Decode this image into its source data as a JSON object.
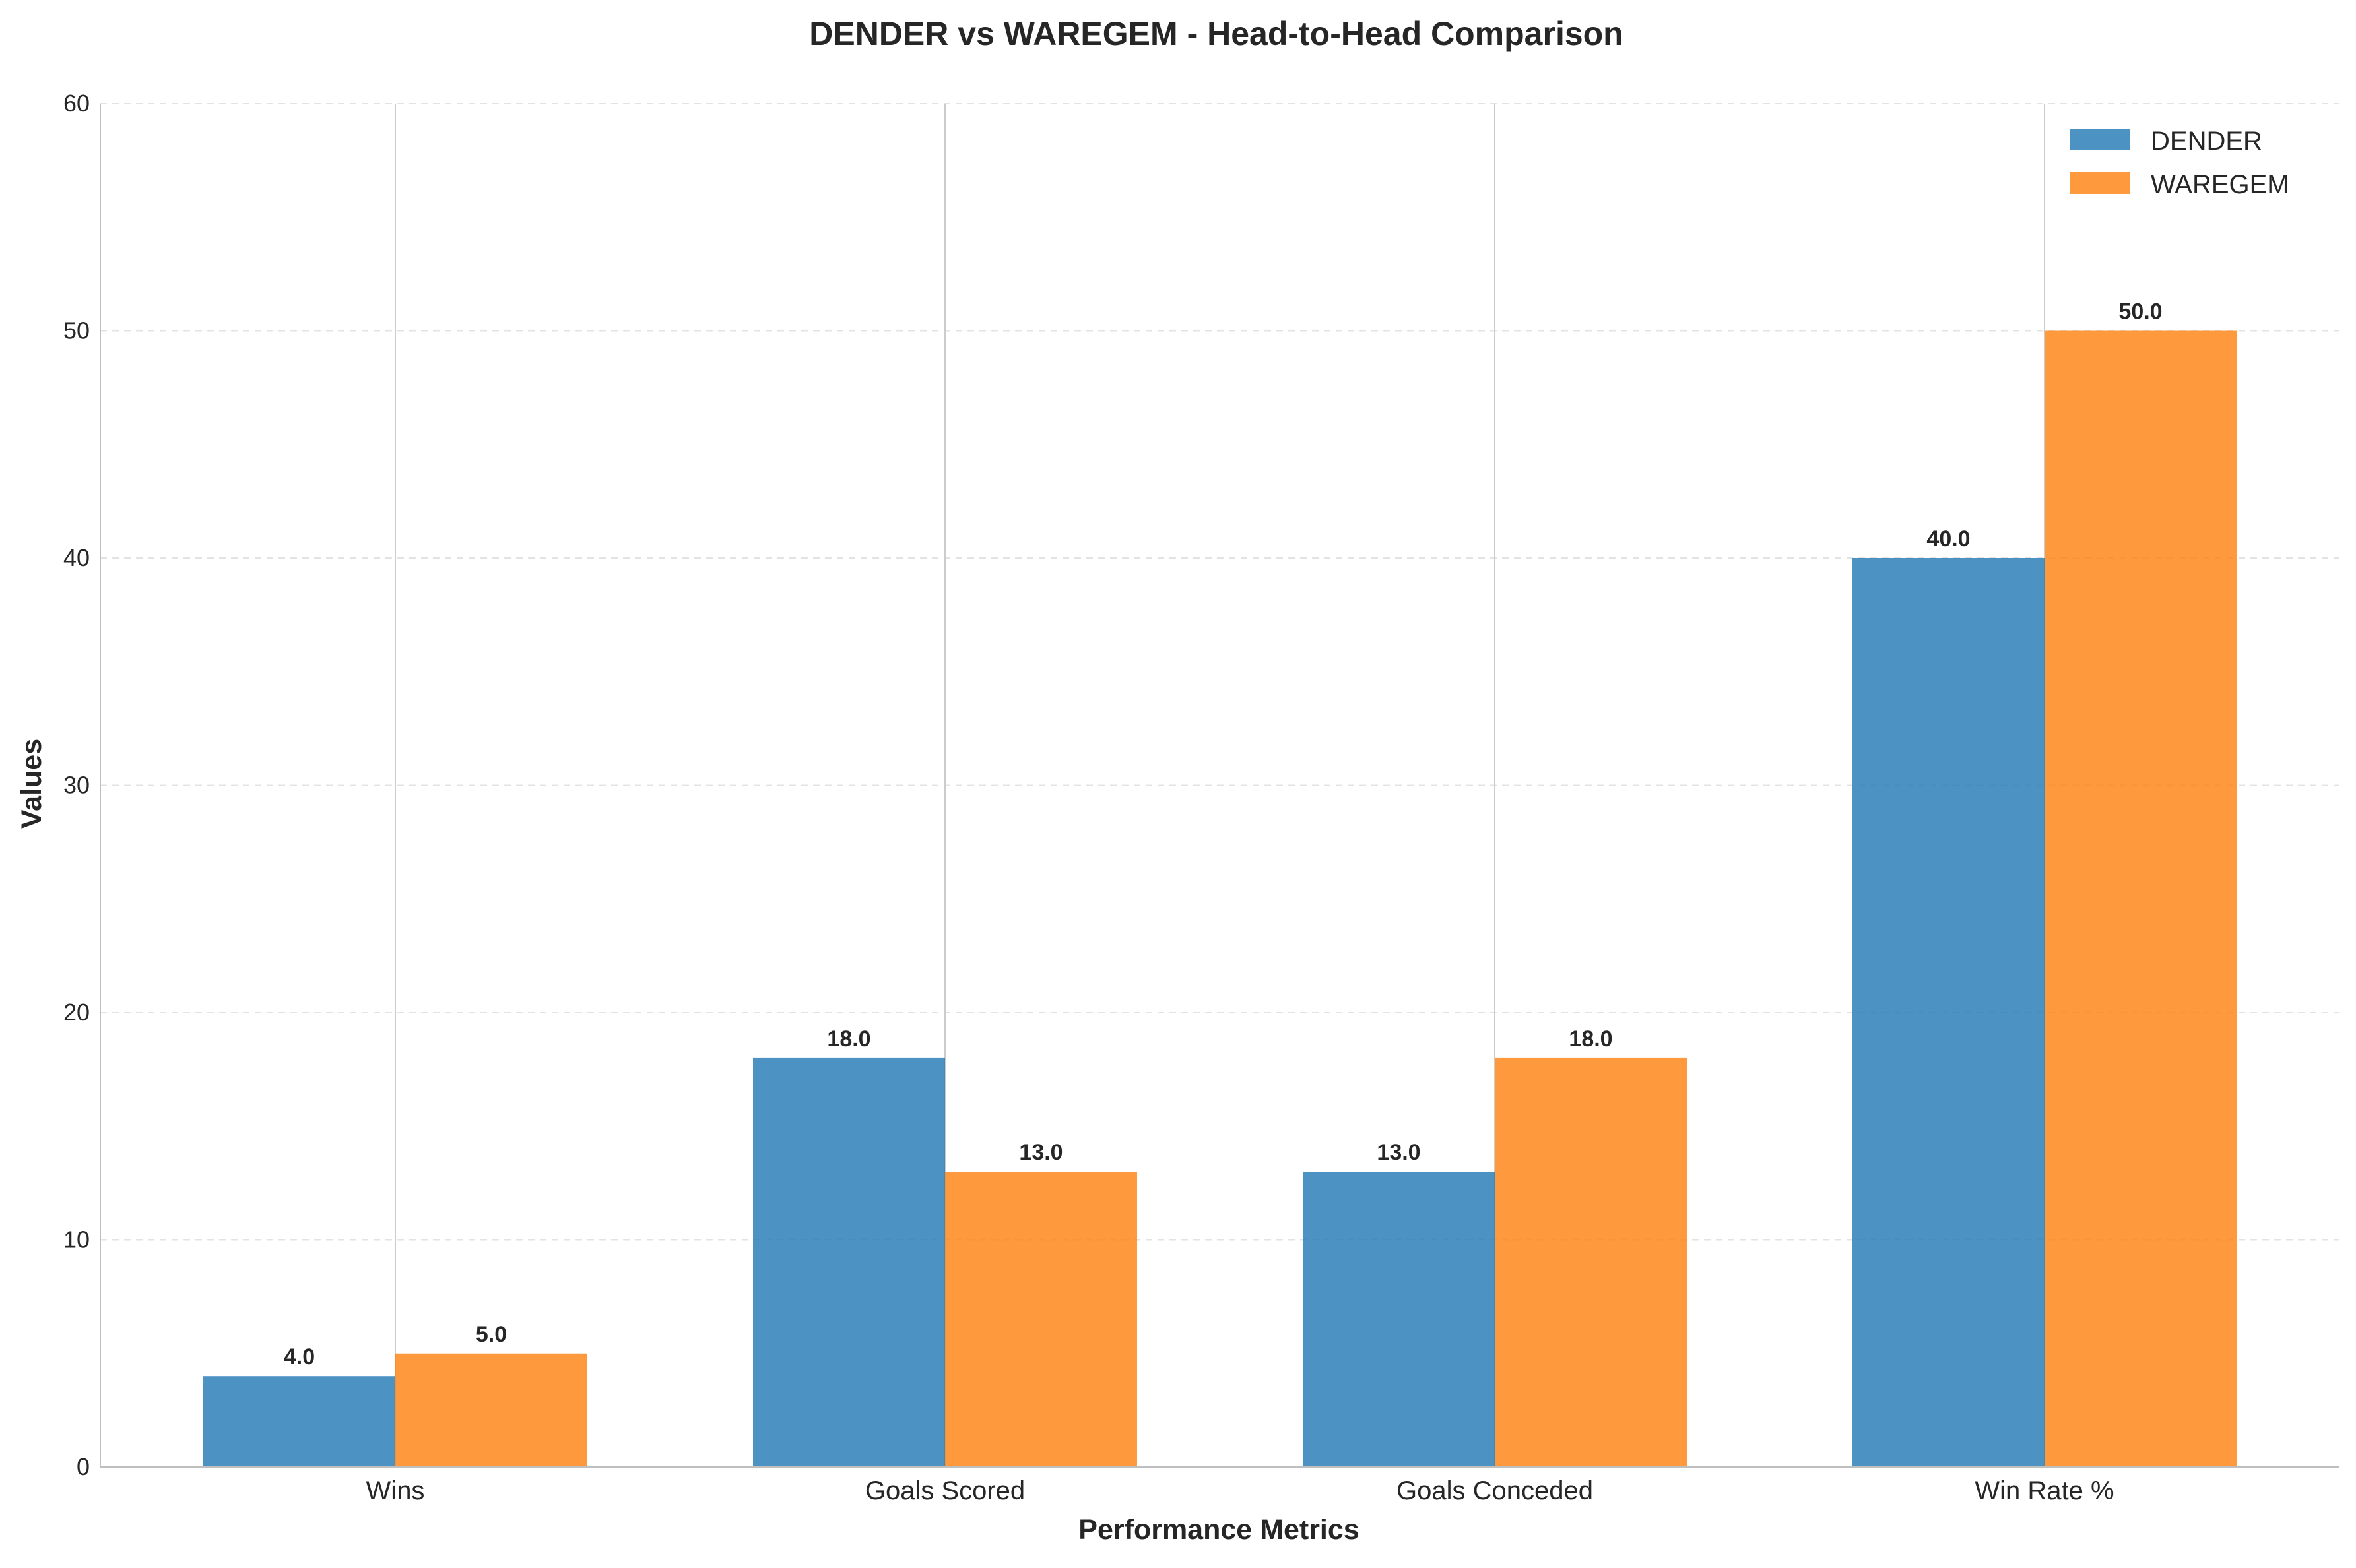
{
  "chart_data": {
    "type": "bar",
    "title": "DENDER vs WAREGEM - Head-to-Head Comparison",
    "xlabel": "Performance Metrics",
    "ylabel": "Values",
    "categories": [
      "Wins",
      "Goals Scored",
      "Goals Conceded",
      "Win Rate %"
    ],
    "series": [
      {
        "name": "DENDER",
        "values": [
          4.0,
          18.0,
          13.0,
          40.0
        ],
        "color": "#1f77b4",
        "labels": [
          "4.0",
          "18.0",
          "13.0",
          "40.0"
        ]
      },
      {
        "name": "WAREGEM",
        "values": [
          5.0,
          13.0,
          18.0,
          50.0
        ],
        "color": "#ff7f0e",
        "labels": [
          "5.0",
          "13.0",
          "18.0",
          "50.0"
        ]
      }
    ],
    "ylim": [
      0,
      60
    ],
    "yticks": [
      0,
      10,
      20,
      30,
      40,
      50,
      60
    ],
    "ytick_labels": [
      "0",
      "10",
      "20",
      "30",
      "40",
      "50",
      "60"
    ],
    "grid": "y-dashed",
    "legend_position": "top-right"
  }
}
